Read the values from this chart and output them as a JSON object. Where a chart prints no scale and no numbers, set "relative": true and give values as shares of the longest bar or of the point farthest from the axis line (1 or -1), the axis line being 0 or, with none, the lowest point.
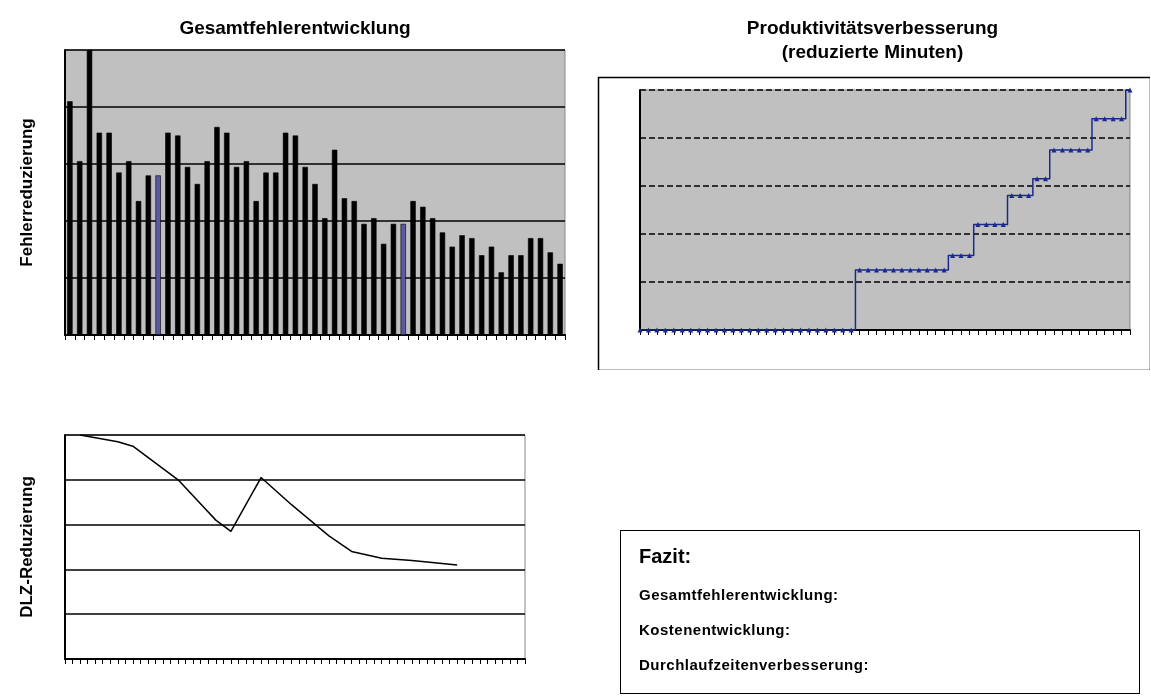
{
  "chart_data": [
    {
      "type": "bar",
      "title": "Gesamtfehlerentwicklung",
      "ylabel": "Fehlerreduzierung",
      "relative": true,
      "grid": "y",
      "categories": [
        null,
        null,
        null,
        null,
        null,
        null,
        null,
        null,
        null,
        null,
        null,
        null,
        null,
        null,
        null,
        null,
        null,
        null,
        null,
        null,
        null,
        null,
        null,
        null,
        null,
        null,
        null,
        null,
        null,
        null,
        null,
        null,
        null,
        null,
        null,
        null,
        null,
        null,
        null,
        null,
        null,
        null,
        null,
        null,
        null,
        null,
        null,
        null,
        null,
        null,
        null
      ],
      "values": [
        0.82,
        0.61,
        1,
        0.71,
        0.71,
        0.57,
        0.61,
        0.47,
        0.56,
        0.56,
        0.71,
        0.7,
        0.59,
        0.53,
        0.61,
        0.73,
        0.71,
        0.59,
        0.61,
        0.47,
        0.57,
        0.57,
        0.71,
        0.7,
        0.59,
        0.53,
        0.41,
        0.65,
        0.48,
        0.47,
        0.39,
        0.41,
        0.32,
        0.39,
        0.39,
        0.47,
        0.45,
        0.41,
        0.36,
        0.31,
        0.35,
        0.34,
        0.28,
        0.31,
        0.22,
        0.28,
        0.28,
        0.34,
        0.34,
        0.29,
        0.25
      ],
      "colors": [
        "#000000",
        "#000000",
        "#000000",
        "#000000",
        "#000000",
        "#000000",
        "#000000",
        "#000000",
        "#000000",
        "#5a5aa0",
        "#000000",
        "#000000",
        "#000000",
        "#000000",
        "#000000",
        "#000000",
        "#000000",
        "#000000",
        "#000000",
        "#000000",
        "#000000",
        "#000000",
        "#000000",
        "#000000",
        "#000000",
        "#000000",
        "#000000",
        "#000000",
        "#000000",
        "#000000",
        "#000000",
        "#000000",
        "#000000",
        "#000000",
        "#5a5aa0",
        "#000000",
        "#000000",
        "#000000",
        "#000000",
        "#000000",
        "#000000",
        "#000000",
        "#000000",
        "#000000",
        "#000000",
        "#000000",
        "#000000",
        "#000000",
        "#000000",
        "#000000",
        "#000000"
      ]
    },
    {
      "type": "step",
      "title": "Produktivitätsverbesserung\n(reduzierte Minuten)",
      "relative": true,
      "grid": "y",
      "marker": "triangle",
      "categories": [
        null,
        null,
        null,
        null,
        null,
        null,
        null,
        null,
        null,
        null,
        null,
        null,
        null,
        null,
        null,
        null,
        null,
        null,
        null,
        null,
        null,
        null,
        null,
        null,
        null,
        null,
        null,
        null,
        null,
        null,
        null,
        null,
        null,
        null,
        null,
        null,
        null,
        null,
        null,
        null,
        null,
        null,
        null,
        null,
        null,
        null,
        null,
        null,
        null,
        null,
        null,
        null,
        null,
        null,
        null,
        null,
        null,
        null,
        null
      ],
      "series": [
        {
          "color": "#1a2a8c",
          "values": [
            0,
            0,
            0,
            0,
            0,
            0,
            0,
            0,
            0,
            0,
            0,
            0,
            0,
            0,
            0,
            0,
            0,
            0,
            0,
            0,
            0,
            0,
            0,
            0,
            0,
            0,
            0.25,
            0.25,
            0.25,
            0.25,
            0.25,
            0.25,
            0.25,
            0.25,
            0.25,
            0.25,
            0.25,
            0.31,
            0.31,
            0.31,
            0.44,
            0.44,
            0.44,
            0.44,
            0.56,
            0.56,
            0.56,
            0.63,
            0.63,
            0.75,
            0.75,
            0.75,
            0.75,
            0.75,
            0.88,
            0.88,
            0.88,
            0.88,
            1
          ]
        }
      ]
    },
    {
      "type": "line",
      "ylabel": "DLZ-Reduzierung",
      "relative": true,
      "grid": "y",
      "marker": "none",
      "categories": [
        null,
        null,
        null,
        null,
        null,
        null,
        null,
        null,
        null,
        null,
        null,
        null,
        null,
        null,
        null,
        null,
        null,
        null,
        null,
        null,
        null,
        null,
        null,
        null,
        null,
        null,
        null,
        null,
        null,
        null,
        null,
        null,
        null,
        null,
        null,
        null,
        null,
        null,
        null,
        null,
        null,
        null,
        null,
        null,
        null,
        null,
        null,
        null,
        null,
        null,
        null,
        null,
        null,
        null,
        null,
        null,
        null,
        null,
        null,
        null,
        null,
        null
      ],
      "series": [
        {
          "color": "#000000",
          "values": [
            null,
            null,
            1,
            null,
            null,
            null,
            null,
            0.97,
            null,
            0.95,
            null,
            null,
            null,
            null,
            null,
            0.8,
            null,
            null,
            null,
            null,
            0.62,
            null,
            0.57,
            null,
            null,
            null,
            0.81,
            null,
            null,
            null,
            0.69,
            null,
            null,
            null,
            null,
            0.55,
            null,
            null,
            0.48,
            null,
            null,
            null,
            0.45,
            null,
            null,
            null,
            0.44,
            null,
            null,
            null,
            null,
            null,
            0.42,
            null,
            null,
            null,
            null,
            null,
            null,
            null,
            null,
            null
          ]
        }
      ]
    },
    {
      "type": "other",
      "title": "Fazit:",
      "annotations": [
        "Gesamtfehlerentwicklung:",
        "Kostenentwicklung:",
        "Durchlaufzeitenverbesserung:"
      ]
    }
  ]
}
